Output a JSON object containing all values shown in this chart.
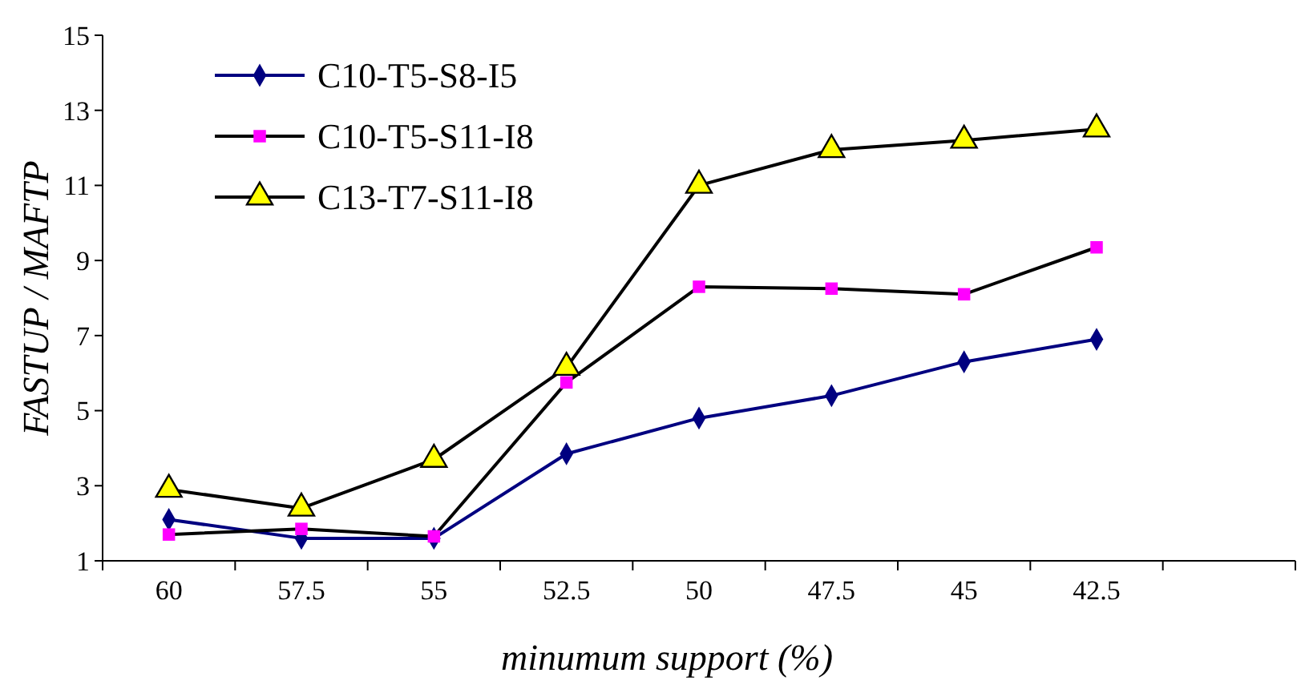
{
  "chart_data": {
    "type": "line",
    "xlabel": "minumum support  (%)",
    "ylabel": "FASTUP / MAFTP",
    "categories": [
      "60",
      "57.5",
      "55",
      "52.5",
      "50",
      "47.5",
      "45",
      "42.5",
      null
    ],
    "ylim": [
      1,
      15
    ],
    "yticks": [
      1,
      3,
      5,
      7,
      9,
      11,
      13,
      15
    ],
    "grid": false,
    "legend": "top left",
    "series": [
      {
        "name": "C10-T5-S8-I5",
        "color": "#000080",
        "marker": "diamond",
        "colors": [
          "#000080",
          "#000080",
          "#000080",
          "#000080",
          "#000080",
          "#000080",
          "#000080",
          "#000080",
          null
        ],
        "values": [
          2.1,
          1.6,
          1.6,
          3.85,
          4.8,
          5.4,
          6.3,
          6.9,
          null
        ]
      },
      {
        "name": "C10-T5-S11-I8",
        "color": "#000000",
        "marker": "square",
        "colors": [
          "#ff00ff",
          "#ff00ff",
          "#ff00ff",
          "#ff00ff",
          "#ff00ff",
          "#ff00ff",
          "#ff00ff",
          "#ff00ff",
          null
        ],
        "values": [
          1.7,
          1.85,
          1.65,
          5.75,
          8.3,
          8.25,
          8.1,
          9.35,
          null
        ]
      },
      {
        "name": "C13-T7-S11-I8",
        "color": "#000000",
        "marker": "triangle",
        "colors": [
          "#ffff00",
          "#ffff00",
          "#ffff00",
          "#ffff00",
          "#ffff00",
          "#ffff00",
          "#ffff00",
          "#ffff00",
          null
        ],
        "values": [
          2.9,
          2.4,
          3.7,
          6.15,
          11.0,
          11.95,
          12.2,
          12.5,
          null
        ]
      }
    ]
  }
}
